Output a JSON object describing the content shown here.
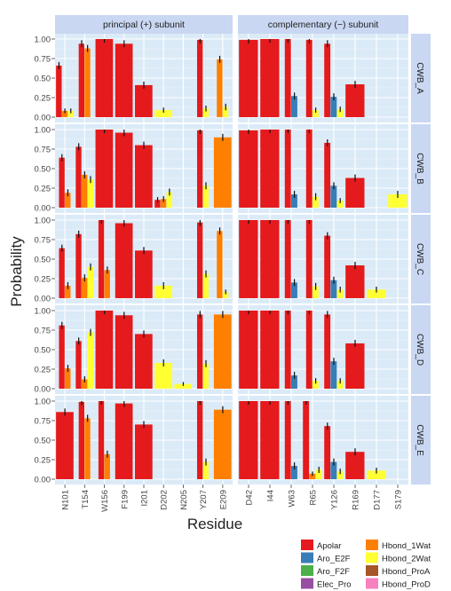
{
  "chart_data": {
    "type": "bar",
    "ylabel": "Probability",
    "xlabel": "Residue",
    "ylim": [
      0,
      1.0
    ],
    "yticks": [
      "0.00",
      "0.25",
      "0.50",
      "0.75",
      "1.00"
    ],
    "columns": [
      "principal (+) subunit",
      "complementary (−) subunit"
    ],
    "rows": [
      "CWB_A",
      "CWB_B",
      "CWB_C",
      "CWB_D",
      "CWB_E"
    ],
    "categories": {
      "principal (+) subunit": [
        "N101",
        "T154",
        "W156",
        "F199",
        "I201",
        "D202",
        "N205",
        "Y207",
        "E209"
      ],
      "complementary (−) subunit": [
        "D42",
        "I44",
        "W63",
        "R65",
        "Y126",
        "R169",
        "D177",
        "S179"
      ]
    },
    "series_colors": {
      "Apolar": "#e41a1c",
      "Aro_E2F": "#377eb8",
      "Aro_F2F": "#4daf4a",
      "Elec_Pro": "#984ea3",
      "Hbond_1Wat": "#ff7f00",
      "Hbond_2Wat": "#ffff33",
      "Hbond_ProA": "#a65628",
      "Hbond_ProD": "#f781bf"
    },
    "legend": [
      "Apolar",
      "Aro_E2F",
      "Aro_F2F",
      "Elec_Pro",
      "Hbond_1Wat",
      "Hbond_2Wat",
      "Hbond_ProA",
      "Hbond_ProD"
    ],
    "legend_position": "bottom-right",
    "panels": [
      {
        "row": "CWB_A",
        "column": "principal (+) subunit",
        "values": {
          "N101": {
            "Apolar": 0.66,
            "Hbond_1Wat": 0.08,
            "Hbond_2Wat": 0.08
          },
          "T154": {
            "Apolar": 0.94,
            "Hbond_1Wat": 0.88
          },
          "W156": {
            "Apolar": 1.0
          },
          "F199": {
            "Apolar": 0.94
          },
          "I201": {
            "Apolar": 0.41
          },
          "D202": {
            "Hbond_2Wat": 0.09
          },
          "Y207": {
            "Apolar": 0.99,
            "Hbond_2Wat": 0.11
          },
          "E209": {
            "Hbond_1Wat": 0.74,
            "Hbond_2Wat": 0.13
          }
        }
      },
      {
        "row": "CWB_A",
        "column": "complementary (−) subunit",
        "values": {
          "D42": {
            "Apolar": 0.99
          },
          "I44": {
            "Apolar": 1.0
          },
          "W63": {
            "Apolar": 1.0,
            "Aro_E2F": 0.27
          },
          "R65": {
            "Apolar": 0.99,
            "Hbond_2Wat": 0.09
          },
          "Y126": {
            "Apolar": 0.94,
            "Aro_E2F": 0.26,
            "Hbond_2Wat": 0.1
          },
          "R169": {
            "Apolar": 0.42
          }
        }
      },
      {
        "row": "CWB_B",
        "column": "principal (+) subunit",
        "values": {
          "N101": {
            "Apolar": 0.64,
            "Hbond_1Wat": 0.19
          },
          "T154": {
            "Apolar": 0.78,
            "Hbond_1Wat": 0.42,
            "Hbond_2Wat": 0.36
          },
          "W156": {
            "Apolar": 1.0
          },
          "F199": {
            "Apolar": 0.96
          },
          "I201": {
            "Apolar": 0.8
          },
          "D202": {
            "Apolar": 0.1,
            "Hbond_1Wat": 0.11,
            "Hbond_2Wat": 0.2
          },
          "Y207": {
            "Apolar": 0.99,
            "Hbond_2Wat": 0.28
          },
          "E209": {
            "Hbond_1Wat": 0.9
          }
        }
      },
      {
        "row": "CWB_B",
        "column": "complementary (−) subunit",
        "values": {
          "D42": {
            "Apolar": 0.99
          },
          "I44": {
            "Apolar": 1.0
          },
          "W63": {
            "Apolar": 1.0,
            "Aro_E2F": 0.17
          },
          "R65": {
            "Apolar": 1.0,
            "Hbond_2Wat": 0.14
          },
          "Y126": {
            "Apolar": 0.83,
            "Aro_E2F": 0.28,
            "Hbond_2Wat": 0.09
          },
          "R169": {
            "Apolar": 0.38
          },
          "S179": {
            "Hbond_2Wat": 0.17
          }
        }
      },
      {
        "row": "CWB_C",
        "column": "principal (+) subunit",
        "values": {
          "N101": {
            "Apolar": 0.64,
            "Hbond_1Wat": 0.16
          },
          "T154": {
            "Apolar": 0.82,
            "Hbond_1Wat": 0.26,
            "Hbond_2Wat": 0.4
          },
          "W156": {
            "Apolar": 1.0,
            "Hbond_1Wat": 0.36
          },
          "F199": {
            "Apolar": 0.96
          },
          "I201": {
            "Apolar": 0.61
          },
          "D202": {
            "Hbond_2Wat": 0.16
          },
          "Y207": {
            "Apolar": 0.97,
            "Hbond_2Wat": 0.31
          },
          "E209": {
            "Hbond_1Wat": 0.86,
            "Hbond_2Wat": 0.08
          }
        }
      },
      {
        "row": "CWB_C",
        "column": "complementary (−) subunit",
        "values": {
          "D42": {
            "Apolar": 1.0
          },
          "I44": {
            "Apolar": 1.0
          },
          "W63": {
            "Apolar": 1.0,
            "Aro_E2F": 0.2
          },
          "R65": {
            "Apolar": 1.0,
            "Hbond_2Wat": 0.15
          },
          "Y126": {
            "Apolar": 0.8,
            "Aro_E2F": 0.23,
            "Hbond_2Wat": 0.11
          },
          "R169": {
            "Apolar": 0.42
          },
          "D177": {
            "Hbond_2Wat": 0.11
          }
        }
      },
      {
        "row": "CWB_D",
        "column": "principal (+) subunit",
        "values": {
          "N101": {
            "Apolar": 0.81,
            "Hbond_1Wat": 0.26
          },
          "T154": {
            "Apolar": 0.61,
            "Hbond_1Wat": 0.12,
            "Hbond_2Wat": 0.72
          },
          "W156": {
            "Apolar": 1.0
          },
          "F199": {
            "Apolar": 0.94
          },
          "I201": {
            "Apolar": 0.7
          },
          "D202": {
            "Hbond_2Wat": 0.33
          },
          "N205": {
            "Hbond_2Wat": 0.06
          },
          "Y207": {
            "Apolar": 0.95,
            "Hbond_2Wat": 0.32
          },
          "E209": {
            "Hbond_1Wat": 0.95
          }
        }
      },
      {
        "row": "CWB_D",
        "column": "complementary (−) subunit",
        "values": {
          "D42": {
            "Apolar": 1.0
          },
          "I44": {
            "Apolar": 1.0
          },
          "W63": {
            "Apolar": 1.0,
            "Aro_E2F": 0.17
          },
          "R65": {
            "Apolar": 1.0,
            "Hbond_2Wat": 0.1
          },
          "Y126": {
            "Apolar": 0.95,
            "Aro_E2F": 0.35,
            "Hbond_2Wat": 0.1
          },
          "R169": {
            "Apolar": 0.58
          }
        }
      },
      {
        "row": "CWB_E",
        "column": "principal (+) subunit",
        "values": {
          "N101": {
            "Apolar": 0.86
          },
          "T154": {
            "Apolar": 0.99,
            "Hbond_1Wat": 0.78
          },
          "W156": {
            "Apolar": 1.0,
            "Hbond_1Wat": 0.32
          },
          "F199": {
            "Apolar": 0.97
          },
          "I201": {
            "Apolar": 0.7
          },
          "Y207": {
            "Apolar": 1.0,
            "Hbond_2Wat": 0.22
          },
          "E209": {
            "Hbond_1Wat": 0.89
          }
        }
      },
      {
        "row": "CWB_E",
        "column": "complementary (−) subunit",
        "values": {
          "D42": {
            "Apolar": 1.0
          },
          "I44": {
            "Apolar": 1.0
          },
          "W63": {
            "Apolar": 1.0,
            "Aro_E2F": 0.17
          },
          "R65": {
            "Apolar": 1.0,
            "Hbond_1Wat": 0.07,
            "Hbond_2Wat": 0.12
          },
          "Y126": {
            "Apolar": 0.68,
            "Aro_E2F": 0.22,
            "Hbond_2Wat": 0.1
          },
          "R169": {
            "Apolar": 0.35
          },
          "D177": {
            "Hbond_2Wat": 0.11
          }
        }
      }
    ]
  }
}
